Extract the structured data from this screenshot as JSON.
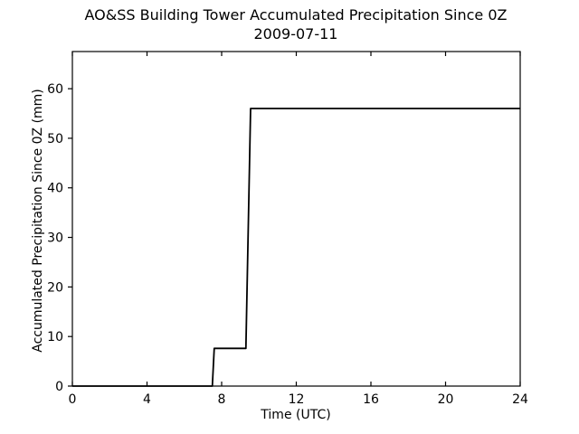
{
  "chart_data": {
    "type": "line",
    "title": "AO&SS Building Tower Accumulated Precipitation Since 0Z",
    "subtitle": "2009-07-11",
    "xlabel": "Time (UTC)",
    "ylabel": "Accumulated Precipitation Since 0Z (mm)",
    "xlim": [
      0,
      24
    ],
    "ylim": [
      0,
      67.5
    ],
    "xticks": [
      0,
      4,
      8,
      12,
      16,
      20,
      24
    ],
    "yticks": [
      0,
      10,
      20,
      30,
      40,
      50,
      60
    ],
    "grid": false,
    "legend": false,
    "background_color": "#ffffff",
    "line_color": "#000000",
    "line_width": 1.8,
    "tick_style": {
      "x_direction": "in",
      "y_direction": "out",
      "x_on_top_spine": true
    },
    "series": [
      {
        "name": "Accumulated precipitation since 0Z (mm)",
        "points": [
          [
            0,
            0
          ],
          [
            7.5,
            0
          ],
          [
            7.6,
            7.6
          ],
          [
            9.3,
            7.6
          ],
          [
            9.55,
            56.0
          ],
          [
            24,
            56.0
          ]
        ]
      }
    ]
  }
}
